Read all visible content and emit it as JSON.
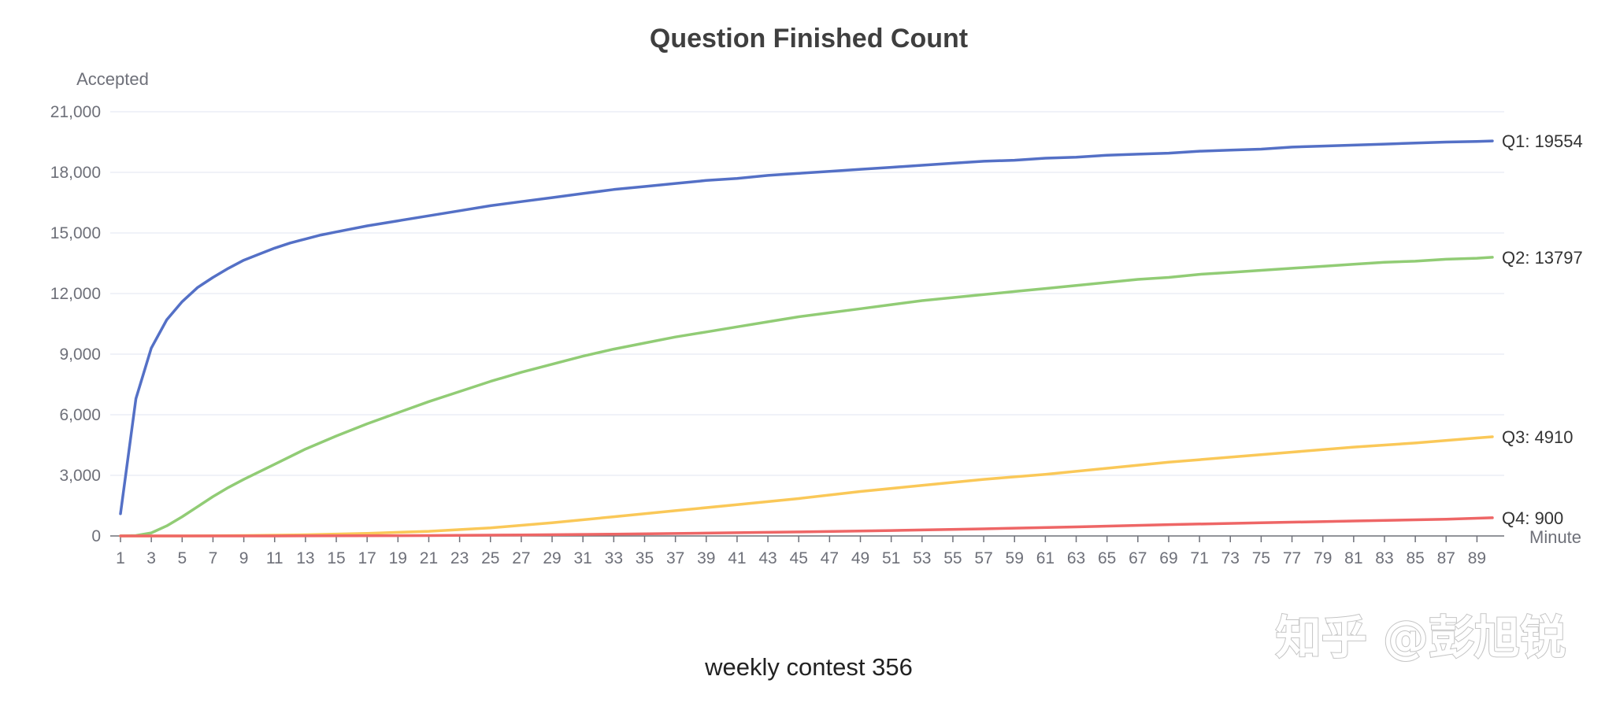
{
  "chart_data": {
    "type": "line",
    "title": "Question Finished Count",
    "ylabel": "Accepted",
    "xlabel": "Minute",
    "caption": "weekly contest 356",
    "watermark": "知乎 @彭旭锐",
    "xlim": [
      1,
      90
    ],
    "ylim": [
      0,
      21000
    ],
    "yticks": [
      0,
      3000,
      6000,
      9000,
      12000,
      15000,
      18000,
      21000
    ],
    "ytick_labels": [
      "0",
      "3,000",
      "6,000",
      "9,000",
      "12,000",
      "15,000",
      "18,000",
      "21,000"
    ],
    "xtick_labels": [
      "1",
      "3",
      "5",
      "7",
      "9",
      "11",
      "13",
      "15",
      "17",
      "19",
      "21",
      "23",
      "25",
      "27",
      "29",
      "31",
      "33",
      "35",
      "37",
      "39",
      "41",
      "43",
      "45",
      "47",
      "49",
      "51",
      "53",
      "55",
      "57",
      "59",
      "61",
      "63",
      "65",
      "67",
      "69",
      "71",
      "73",
      "75",
      "77",
      "79",
      "81",
      "83",
      "85",
      "87",
      "89"
    ],
    "grid": true,
    "series": [
      {
        "name": "Q1",
        "color": "#5470c6",
        "end_label": "Q1: 19554",
        "points": [
          [
            1,
            1100
          ],
          [
            2,
            6800
          ],
          [
            3,
            9300
          ],
          [
            4,
            10700
          ],
          [
            5,
            11600
          ],
          [
            6,
            12300
          ],
          [
            7,
            12800
          ],
          [
            8,
            13250
          ],
          [
            9,
            13650
          ],
          [
            10,
            13950
          ],
          [
            11,
            14250
          ],
          [
            12,
            14500
          ],
          [
            13,
            14700
          ],
          [
            14,
            14900
          ],
          [
            15,
            15050
          ],
          [
            17,
            15350
          ],
          [
            19,
            15600
          ],
          [
            21,
            15850
          ],
          [
            23,
            16100
          ],
          [
            25,
            16350
          ],
          [
            27,
            16550
          ],
          [
            29,
            16750
          ],
          [
            31,
            16950
          ],
          [
            33,
            17150
          ],
          [
            35,
            17300
          ],
          [
            37,
            17450
          ],
          [
            39,
            17600
          ],
          [
            41,
            17700
          ],
          [
            43,
            17850
          ],
          [
            45,
            17950
          ],
          [
            47,
            18050
          ],
          [
            49,
            18150
          ],
          [
            51,
            18250
          ],
          [
            53,
            18350
          ],
          [
            55,
            18450
          ],
          [
            57,
            18550
          ],
          [
            59,
            18600
          ],
          [
            61,
            18700
          ],
          [
            63,
            18750
          ],
          [
            65,
            18850
          ],
          [
            67,
            18900
          ],
          [
            69,
            18950
          ],
          [
            71,
            19050
          ],
          [
            73,
            19100
          ],
          [
            75,
            19150
          ],
          [
            77,
            19250
          ],
          [
            79,
            19300
          ],
          [
            81,
            19350
          ],
          [
            83,
            19400
          ],
          [
            85,
            19450
          ],
          [
            87,
            19500
          ],
          [
            89,
            19530
          ],
          [
            90,
            19554
          ]
        ]
      },
      {
        "name": "Q2",
        "color": "#91cc75",
        "end_label": "Q2: 13797",
        "points": [
          [
            1,
            0
          ],
          [
            2,
            20
          ],
          [
            3,
            150
          ],
          [
            4,
            500
          ],
          [
            5,
            950
          ],
          [
            6,
            1450
          ],
          [
            7,
            1950
          ],
          [
            8,
            2400
          ],
          [
            9,
            2800
          ],
          [
            11,
            3550
          ],
          [
            13,
            4300
          ],
          [
            15,
            4950
          ],
          [
            17,
            5550
          ],
          [
            19,
            6100
          ],
          [
            21,
            6650
          ],
          [
            23,
            7150
          ],
          [
            25,
            7650
          ],
          [
            27,
            8100
          ],
          [
            29,
            8500
          ],
          [
            31,
            8900
          ],
          [
            33,
            9250
          ],
          [
            35,
            9550
          ],
          [
            37,
            9850
          ],
          [
            39,
            10100
          ],
          [
            41,
            10350
          ],
          [
            43,
            10600
          ],
          [
            45,
            10850
          ],
          [
            47,
            11050
          ],
          [
            49,
            11250
          ],
          [
            51,
            11450
          ],
          [
            53,
            11650
          ],
          [
            55,
            11800
          ],
          [
            57,
            11950
          ],
          [
            59,
            12100
          ],
          [
            61,
            12250
          ],
          [
            63,
            12400
          ],
          [
            65,
            12550
          ],
          [
            67,
            12700
          ],
          [
            69,
            12800
          ],
          [
            71,
            12950
          ],
          [
            73,
            13050
          ],
          [
            75,
            13150
          ],
          [
            77,
            13250
          ],
          [
            79,
            13350
          ],
          [
            81,
            13450
          ],
          [
            83,
            13550
          ],
          [
            85,
            13600
          ],
          [
            87,
            13700
          ],
          [
            89,
            13750
          ],
          [
            90,
            13797
          ]
        ]
      },
      {
        "name": "Q3",
        "color": "#fac858",
        "end_label": "Q3: 4910",
        "points": [
          [
            1,
            0
          ],
          [
            5,
            0
          ],
          [
            9,
            20
          ],
          [
            13,
            60
          ],
          [
            17,
            130
          ],
          [
            21,
            230
          ],
          [
            25,
            400
          ],
          [
            29,
            650
          ],
          [
            33,
            950
          ],
          [
            37,
            1250
          ],
          [
            41,
            1550
          ],
          [
            45,
            1850
          ],
          [
            49,
            2200
          ],
          [
            53,
            2500
          ],
          [
            57,
            2800
          ],
          [
            61,
            3050
          ],
          [
            65,
            3350
          ],
          [
            69,
            3650
          ],
          [
            73,
            3900
          ],
          [
            77,
            4150
          ],
          [
            81,
            4400
          ],
          [
            85,
            4600
          ],
          [
            89,
            4850
          ],
          [
            90,
            4910
          ]
        ]
      },
      {
        "name": "Q4",
        "color": "#ee6666",
        "end_label": "Q4: 900",
        "points": [
          [
            1,
            0
          ],
          [
            11,
            0
          ],
          [
            21,
            20
          ],
          [
            27,
            50
          ],
          [
            33,
            90
          ],
          [
            39,
            140
          ],
          [
            45,
            200
          ],
          [
            51,
            270
          ],
          [
            57,
            350
          ],
          [
            63,
            450
          ],
          [
            69,
            560
          ],
          [
            75,
            650
          ],
          [
            81,
            740
          ],
          [
            87,
            830
          ],
          [
            90,
            900
          ]
        ]
      }
    ]
  }
}
